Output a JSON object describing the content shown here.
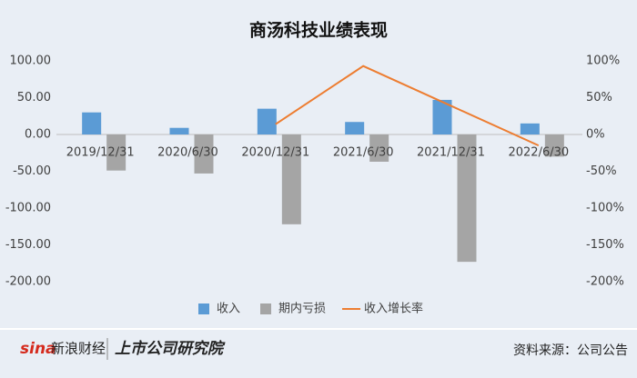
{
  "chart_data": {
    "type": "bar-line",
    "title": "商汤科技业绩表现",
    "categories": [
      "2019/12/31",
      "2020/6/30",
      "2020/12/31",
      "2021/6/30",
      "2021/12/31",
      "2022/6/30"
    ],
    "series": [
      {
        "name": "收入",
        "type": "bar",
        "color": "#5b9bd5",
        "values": [
          30,
          9,
          35,
          17,
          47,
          15
        ]
      },
      {
        "name": "期内亏损",
        "type": "bar",
        "color": "#a5a5a5",
        "values": [
          -49,
          -53,
          -122,
          -37,
          -173,
          -30
        ]
      },
      {
        "name": "收入增长率",
        "type": "line",
        "axis": "y2",
        "color": "#ed7d31",
        "values": [
          null,
          null,
          14,
          93,
          39,
          -15
        ]
      }
    ],
    "ylim": [
      -200,
      100
    ],
    "yticks": [
      {
        "value": 100,
        "label": "100.00"
      },
      {
        "value": 50,
        "label": "50.00"
      },
      {
        "value": 0,
        "label": "0.00"
      },
      {
        "value": -50,
        "label": "-50.00"
      },
      {
        "value": -100,
        "label": "-100.00"
      },
      {
        "value": -150,
        "label": "-150.00"
      },
      {
        "value": -200,
        "label": "-200.00"
      }
    ],
    "y2lim": [
      -200,
      100
    ],
    "y2ticks": [
      {
        "value": 100,
        "label": "100%"
      },
      {
        "value": 50,
        "label": "50%"
      },
      {
        "value": 0,
        "label": "0%"
      },
      {
        "value": -50,
        "label": "-50%"
      },
      {
        "value": -100,
        "label": "-100%"
      },
      {
        "value": -150,
        "label": "-150%"
      },
      {
        "value": -200,
        "label": "-200%"
      }
    ],
    "grid": false,
    "legend": "bottom"
  },
  "footer": {
    "brand": "sina",
    "brand_name": "新浪财经",
    "institute": "上市公司研究院",
    "source": "资料来源：公司公告"
  }
}
